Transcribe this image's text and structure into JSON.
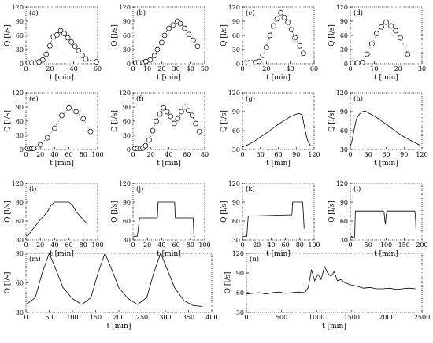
{
  "chart_data": [
    {
      "id": "a",
      "type": "scatter",
      "panel_label": "(a)",
      "xlabel": "t [min]",
      "ylabel": "Q [l/s]",
      "xlim": [
        0,
        60
      ],
      "xticks": [
        "0",
        "20",
        "40",
        "60"
      ],
      "ylim": [
        0,
        120
      ],
      "yticks": [
        "0",
        "30",
        "60",
        "90",
        "120"
      ],
      "connector": "dotted",
      "x": [
        2,
        5,
        8,
        11,
        14,
        17,
        20,
        23,
        26,
        29,
        32,
        35,
        38,
        41,
        44,
        47,
        50,
        59
      ],
      "y": [
        2,
        2,
        2,
        4,
        8,
        20,
        38,
        57,
        61,
        70,
        64,
        55,
        46,
        37,
        28,
        18,
        10,
        4
      ]
    },
    {
      "id": "b",
      "type": "scatter",
      "panel_label": "(b)",
      "xlabel": "t [min]",
      "ylabel": "Q [l/s]",
      "xlim": [
        0,
        50
      ],
      "xticks": [
        "0",
        "10",
        "20",
        "30",
        "40",
        "50"
      ],
      "ylim": [
        0,
        120
      ],
      "yticks": [
        "0",
        "30",
        "60",
        "90",
        "120"
      ],
      "connector": "dotted",
      "x": [
        2,
        4,
        7,
        9,
        12,
        15,
        17,
        20,
        22,
        25,
        28,
        31,
        33,
        36,
        39,
        42,
        45
      ],
      "y": [
        2,
        2,
        3,
        5,
        8,
        17,
        30,
        45,
        60,
        75,
        82,
        90,
        85,
        75,
        62,
        50,
        37
      ]
    },
    {
      "id": "c",
      "type": "scatter",
      "panel_label": "(c)",
      "xlabel": "t [min]",
      "ylabel": "Q [l/s]",
      "xlim": [
        0,
        60
      ],
      "xticks": [
        "0",
        "20",
        "40",
        "60"
      ],
      "ylim": [
        0,
        120
      ],
      "yticks": [
        "0",
        "30",
        "60",
        "90",
        "120"
      ],
      "connector": "dotted",
      "x": [
        2,
        5,
        8,
        11,
        14,
        17,
        20,
        23,
        26,
        29,
        32,
        35,
        38,
        41,
        44,
        48,
        51
      ],
      "y": [
        2,
        2,
        2,
        3,
        5,
        18,
        35,
        60,
        80,
        95,
        108,
        98,
        88,
        72,
        55,
        38,
        22
      ]
    },
    {
      "id": "d",
      "type": "scatter",
      "panel_label": "(d)",
      "xlabel": "t [min]",
      "ylabel": "Q [l/s]",
      "xlim": [
        0,
        30
      ],
      "xticks": [
        "0",
        "10",
        "20",
        "30"
      ],
      "ylim": [
        0,
        120
      ],
      "yticks": [
        "0",
        "30",
        "60",
        "90",
        "120"
      ],
      "connector": "dotted",
      "x": [
        1,
        3,
        5,
        7,
        9,
        11,
        13,
        15,
        17,
        19,
        21,
        24
      ],
      "y": [
        2,
        2,
        3,
        20,
        42,
        64,
        78,
        88,
        80,
        70,
        55,
        20
      ]
    },
    {
      "id": "e",
      "type": "scatter",
      "panel_label": "(e)",
      "xlabel": "t [min]",
      "ylabel": "Q [l/s]",
      "xlim": [
        0,
        100
      ],
      "xticks": [
        "0",
        "20",
        "40",
        "60",
        "80",
        "100"
      ],
      "ylim": [
        0,
        120
      ],
      "yticks": [
        "0",
        "30",
        "60",
        "90",
        "120"
      ],
      "connector": "dotted",
      "x": [
        2,
        5,
        8,
        11,
        20,
        30,
        40,
        50,
        60,
        70,
        80,
        90
      ],
      "y": [
        2,
        2,
        2,
        2,
        10,
        25,
        45,
        72,
        88,
        80,
        65,
        38
      ]
    },
    {
      "id": "f",
      "type": "scatter",
      "panel_label": "(f)",
      "xlabel": "t [min]",
      "ylabel": "Q [l/s]",
      "xlim": [
        0,
        80
      ],
      "xticks": [
        "0",
        "20",
        "40",
        "60",
        "80"
      ],
      "ylim": [
        0,
        120
      ],
      "yticks": [
        "0",
        "30",
        "60",
        "90",
        "120"
      ],
      "connector": "dotted",
      "x": [
        2,
        5,
        8,
        11,
        14,
        18,
        22,
        26,
        30,
        34,
        38,
        42,
        46,
        50,
        54,
        58,
        62,
        66,
        70,
        74
      ],
      "y": [
        2,
        2,
        2,
        3,
        8,
        20,
        40,
        60,
        75,
        88,
        80,
        70,
        55,
        65,
        80,
        90,
        82,
        72,
        55,
        38
      ]
    },
    {
      "id": "g",
      "type": "line",
      "panel_label": "(g)",
      "xlabel": "t [min]",
      "ylabel": "Q [l/s]",
      "xlim": [
        0,
        120
      ],
      "xticks": [
        "0",
        "30",
        "60",
        "90",
        "120"
      ],
      "ylim": [
        30,
        120
      ],
      "yticks": [
        "30",
        "60",
        "90",
        "120"
      ],
      "x": [
        0,
        5,
        10,
        20,
        30,
        40,
        50,
        60,
        70,
        80,
        90,
        95,
        100,
        103,
        106,
        110,
        115
      ],
      "y": [
        34,
        36,
        38,
        43,
        50,
        56,
        63,
        70,
        76,
        82,
        86,
        87,
        85,
        70,
        55,
        42,
        35
      ]
    },
    {
      "id": "h",
      "type": "line",
      "panel_label": "(h)",
      "xlabel": "t [min]",
      "ylabel": "Q [l/s]",
      "xlim": [
        0,
        120
      ],
      "xticks": [
        "0",
        "30",
        "60",
        "90",
        "120"
      ],
      "ylim": [
        30,
        120
      ],
      "yticks": [
        "30",
        "60",
        "90",
        "120"
      ],
      "x": [
        0,
        3,
        6,
        10,
        15,
        20,
        25,
        30,
        40,
        50,
        60,
        70,
        80,
        90,
        100,
        110,
        116
      ],
      "y": [
        35,
        45,
        60,
        78,
        86,
        90,
        91,
        88,
        83,
        77,
        70,
        63,
        56,
        50,
        45,
        40,
        37
      ]
    },
    {
      "id": "i",
      "type": "line",
      "panel_label": "(i)",
      "xlabel": "t [min]",
      "ylabel": "Q [l/s]",
      "xlim": [
        0,
        100
      ],
      "xticks": [
        "0",
        "20",
        "40",
        "60",
        "80",
        "100"
      ],
      "ylim": [
        30,
        120
      ],
      "yticks": [
        "30",
        "60",
        "90",
        "120"
      ],
      "x": [
        0,
        3,
        5,
        10,
        20,
        30,
        35,
        40,
        50,
        60,
        65,
        70,
        80,
        86
      ],
      "y": [
        37,
        37,
        40,
        48,
        62,
        75,
        85,
        90,
        90,
        90,
        85,
        75,
        62,
        55
      ]
    },
    {
      "id": "j",
      "type": "line",
      "panel_label": "(j)",
      "xlabel": "t [min]",
      "ylabel": "Q [l/s]",
      "xlim": [
        0,
        100
      ],
      "xticks": [
        "0",
        "20",
        "40",
        "60",
        "80",
        "100"
      ],
      "ylim": [
        30,
        120
      ],
      "yticks": [
        "30",
        "60",
        "90",
        "120"
      ],
      "x": [
        0,
        3,
        6,
        9,
        34,
        35,
        58,
        59,
        84,
        85,
        86
      ],
      "y": [
        35,
        36,
        36,
        65,
        65,
        90,
        90,
        65,
        65,
        38,
        35
      ]
    },
    {
      "id": "k",
      "type": "line",
      "panel_label": "(k)",
      "xlabel": "t [min]",
      "ylabel": "Q [l/s]",
      "xlim": [
        0,
        100
      ],
      "xticks": [
        "0",
        "20",
        "40",
        "60",
        "80",
        "100"
      ],
      "ylim": [
        30,
        120
      ],
      "yticks": [
        "30",
        "60",
        "90",
        "120"
      ],
      "x": [
        0,
        3,
        6,
        8,
        69,
        70,
        84,
        85,
        86
      ],
      "y": [
        35,
        36,
        36,
        68,
        70,
        90,
        90,
        70,
        48
      ]
    },
    {
      "id": "l",
      "type": "line",
      "panel_label": "(l)",
      "xlabel": "t [min]",
      "ylabel": "Q [l/s]",
      "xlim": [
        0,
        200
      ],
      "xticks": [
        "0",
        "50",
        "100",
        "150",
        "200"
      ],
      "ylim": [
        30,
        120
      ],
      "yticks": [
        "30",
        "60",
        "90",
        "120"
      ],
      "x": [
        0,
        4,
        8,
        12,
        14,
        90,
        94,
        96,
        98,
        100,
        104,
        180,
        182,
        184
      ],
      "y": [
        32,
        36,
        32,
        35,
        76,
        76,
        75,
        62,
        55,
        70,
        76,
        76,
        65,
        35
      ]
    },
    {
      "id": "m",
      "type": "line",
      "panel_label": "(m)",
      "xlabel": "t [min]",
      "ylabel": "Q [l/s]",
      "xlim": [
        0,
        400
      ],
      "xticks": [
        "0",
        "50",
        "100",
        "150",
        "200",
        "250",
        "300",
        "350",
        "400"
      ],
      "ylim": [
        30,
        90
      ],
      "yticks": [
        "30",
        "60",
        "90"
      ],
      "x": [
        0,
        20,
        35,
        50,
        65,
        80,
        100,
        120,
        140,
        155,
        170,
        185,
        200,
        220,
        240,
        260,
        275,
        290,
        305,
        320,
        340,
        360,
        380
      ],
      "y": [
        38,
        45,
        70,
        90,
        73,
        55,
        44,
        38,
        45,
        70,
        90,
        73,
        55,
        44,
        38,
        45,
        70,
        90,
        73,
        55,
        42,
        37,
        36
      ]
    },
    {
      "id": "n",
      "type": "line",
      "panel_label": "(n)",
      "xlabel": "t [min]",
      "ylabel": "Q [l/s]",
      "xlim": [
        0,
        2700
      ],
      "xticks": [
        "0",
        "500",
        "1000",
        "1500",
        "2000",
        "2500"
      ],
      "ylim": [
        30,
        120
      ],
      "yticks": [
        "30",
        "60",
        "90",
        "120"
      ],
      "x": [
        0,
        100,
        200,
        300,
        400,
        500,
        600,
        700,
        800,
        900,
        950,
        1000,
        1050,
        1100,
        1150,
        1200,
        1250,
        1300,
        1350,
        1400,
        1450,
        1500,
        1600,
        1700,
        1800,
        1900,
        2000,
        2100,
        2200,
        2300,
        2400,
        2500,
        2600
      ],
      "y": [
        58,
        59,
        60,
        58,
        60,
        61,
        59,
        60,
        61,
        60,
        68,
        95,
        78,
        88,
        80,
        100,
        90,
        85,
        92,
        78,
        80,
        76,
        72,
        70,
        67,
        68,
        66,
        66,
        67,
        65,
        66,
        67,
        66
      ]
    }
  ]
}
